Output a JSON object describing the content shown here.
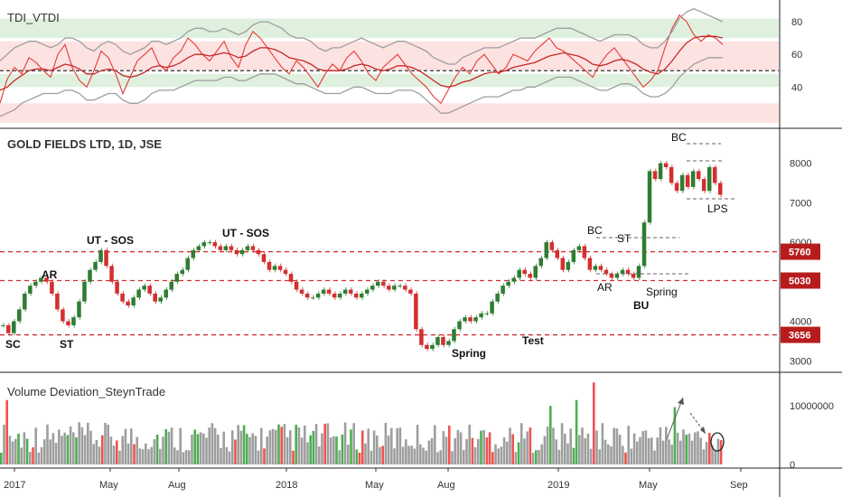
{
  "chart_data": [
    {
      "type": "line",
      "title": "TDI_VTDI",
      "yticks": [
        40,
        60,
        80
      ],
      "ylim": [
        18,
        90
      ],
      "bands": [
        {
          "from": 70,
          "to": 82,
          "color": "#dff0df"
        },
        {
          "from": 50,
          "to": 68,
          "color": "#fde2e2"
        },
        {
          "from": 40,
          "to": 48,
          "color": "#dff0df"
        },
        {
          "from": 18,
          "to": 30,
          "color": "#fde2e2"
        }
      ],
      "midline": 50,
      "series": [
        {
          "role": "tdi-line",
          "color": "#e53935",
          "values": [
            30,
            45,
            52,
            48,
            58,
            55,
            50,
            46,
            60,
            66,
            52,
            44,
            40,
            50,
            62,
            58,
            48,
            36,
            46,
            56,
            60,
            64,
            54,
            50,
            58,
            62,
            70,
            66,
            60,
            56,
            62,
            68,
            58,
            52,
            66,
            74,
            70,
            64,
            58,
            52,
            48,
            56,
            52,
            46,
            40,
            48,
            54,
            50,
            58,
            62,
            56,
            48,
            44,
            52,
            56,
            60,
            54,
            48,
            44,
            40,
            34,
            30,
            38,
            46,
            52,
            48,
            56,
            60,
            54,
            48,
            52,
            60,
            58,
            56,
            62,
            66,
            70,
            64,
            62,
            58,
            54,
            50,
            46,
            54,
            60,
            64,
            58,
            52,
            46,
            40,
            44,
            50,
            64,
            76,
            84,
            80,
            72,
            68,
            72,
            70,
            66
          ]
        },
        {
          "role": "signal-line",
          "color": "#c62828",
          "values": [
            38,
            40,
            44,
            47,
            50,
            51,
            51,
            50,
            52,
            54,
            53,
            51,
            48,
            48,
            50,
            51,
            50,
            47,
            46,
            47,
            49,
            52,
            53,
            52,
            53,
            55,
            58,
            60,
            60,
            59,
            60,
            61,
            60,
            58,
            59,
            62,
            64,
            64,
            63,
            61,
            58,
            57,
            56,
            54,
            51,
            50,
            50,
            50,
            51,
            53,
            54,
            53,
            51,
            50,
            51,
            53,
            53,
            52,
            50,
            47,
            44,
            41,
            40,
            41,
            43,
            44,
            46,
            48,
            49,
            49,
            50,
            52,
            53,
            54,
            55,
            57,
            59,
            60,
            61,
            60,
            59,
            57,
            54,
            53,
            54,
            56,
            57,
            56,
            54,
            51,
            49,
            48,
            51,
            56,
            62,
            67,
            70,
            71,
            71,
            71,
            70
          ]
        },
        {
          "role": "upper-band",
          "color": "#9e9e9e",
          "values": [
            56,
            60,
            64,
            66,
            68,
            68,
            66,
            64,
            66,
            70,
            70,
            68,
            64,
            62,
            66,
            68,
            66,
            62,
            60,
            62,
            64,
            68,
            68,
            66,
            68,
            70,
            74,
            76,
            76,
            74,
            74,
            76,
            74,
            72,
            74,
            78,
            80,
            80,
            78,
            76,
            72,
            70,
            70,
            68,
            64,
            62,
            64,
            64,
            66,
            68,
            70,
            68,
            66,
            64,
            66,
            68,
            68,
            66,
            64,
            62,
            58,
            56,
            54,
            54,
            58,
            60,
            62,
            64,
            64,
            64,
            66,
            68,
            70,
            70,
            70,
            72,
            74,
            76,
            76,
            76,
            74,
            72,
            70,
            68,
            70,
            72,
            72,
            72,
            70,
            66,
            64,
            64,
            68,
            74,
            82,
            86,
            88,
            86,
            84,
            82,
            80
          ]
        },
        {
          "role": "lower-band",
          "color": "#9e9e9e",
          "values": [
            22,
            24,
            26,
            30,
            32,
            34,
            36,
            36,
            36,
            38,
            38,
            36,
            32,
            32,
            34,
            36,
            36,
            32,
            30,
            30,
            32,
            36,
            38,
            38,
            38,
            40,
            42,
            44,
            44,
            44,
            44,
            46,
            46,
            44,
            44,
            46,
            48,
            48,
            48,
            46,
            44,
            42,
            42,
            40,
            38,
            36,
            36,
            36,
            38,
            40,
            40,
            38,
            36,
            36,
            36,
            38,
            38,
            38,
            36,
            32,
            28,
            24,
            24,
            26,
            28,
            30,
            32,
            34,
            34,
            34,
            36,
            38,
            38,
            40,
            40,
            42,
            44,
            46,
            46,
            46,
            44,
            42,
            40,
            38,
            38,
            40,
            42,
            42,
            40,
            36,
            34,
            34,
            36,
            40,
            46,
            50,
            54,
            56,
            58,
            58,
            58
          ]
        }
      ]
    },
    {
      "type": "candlestick",
      "title": "GOLD FIELDS LTD, 1D, JSE",
      "ylim": [
        2800,
        8700
      ],
      "yticks": [
        3000,
        4000,
        5000,
        6000,
        7000,
        8000
      ],
      "closes": [
        3900,
        3700,
        4000,
        4300,
        4700,
        4900,
        5000,
        5100,
        5000,
        4700,
        4300,
        4000,
        3900,
        4100,
        4500,
        5000,
        5300,
        5500,
        5800,
        5400,
        5000,
        4700,
        4500,
        4400,
        4600,
        4800,
        4900,
        4700,
        4500,
        4600,
        4800,
        5000,
        5200,
        5300,
        5600,
        5800,
        5900,
        6000,
        6000,
        5900,
        5800,
        5900,
        5800,
        5700,
        5800,
        5900,
        5800,
        5700,
        5500,
        5300,
        5400,
        5300,
        5200,
        5000,
        4800,
        4700,
        4600,
        4600,
        4700,
        4800,
        4700,
        4600,
        4700,
        4800,
        4700,
        4600,
        4700,
        4800,
        4900,
        5000,
        4900,
        4800,
        4900,
        4900,
        4800,
        4700,
        3800,
        3400,
        3300,
        3400,
        3600,
        3400,
        3500,
        3800,
        4000,
        4100,
        4000,
        4100,
        4200,
        4200,
        4500,
        4700,
        4900,
        5000,
        5100,
        5300,
        5200,
        5100,
        5400,
        5600,
        6000,
        5800,
        5600,
        5300,
        5500,
        5800,
        5900,
        5600,
        5300,
        5400,
        5300,
        5200,
        5100,
        5200,
        5300,
        5200,
        5100,
        5400,
        6500,
        7800,
        7600,
        8000,
        7900,
        7500,
        7300,
        7700,
        7400,
        7800,
        7600,
        7300,
        7900,
        7500,
        7200
      ],
      "price_levels": [
        {
          "value": "5760",
          "price": 5760,
          "color": "#d32f2f"
        },
        {
          "value": "5030",
          "price": 5030,
          "color": "#d32f2f"
        },
        {
          "value": "3656",
          "price": 3656,
          "color": "#d32f2f"
        }
      ],
      "annotations": [
        {
          "text": "SC",
          "bold": true
        },
        {
          "text": "AR",
          "bold": true
        },
        {
          "text": "ST",
          "bold": true
        },
        {
          "text": "UT - SOS",
          "bold": true
        },
        {
          "text": "UT - SOS",
          "bold": true
        },
        {
          "text": "Spring",
          "bold": true
        },
        {
          "text": "Test",
          "bold": true
        },
        {
          "text": "BC",
          "bold": false
        },
        {
          "text": "ST",
          "bold": false
        },
        {
          "text": "AR",
          "bold": false
        },
        {
          "text": "Spring",
          "bold": false
        },
        {
          "text": "BU",
          "bold": true
        },
        {
          "text": "BC",
          "bold": false
        },
        {
          "text": "LPS",
          "bold": false
        }
      ]
    },
    {
      "type": "bar",
      "title": "Volume Deviation_SteynTrade",
      "ylim": [
        0,
        14500000
      ],
      "yticks": [
        {
          "value": 0,
          "label": "0"
        },
        {
          "value": 10000000,
          "label": "10000000"
        }
      ],
      "colors": {
        "up": "#4caf50",
        "down": "#ef5350",
        "neutral": "#9e9e9e"
      },
      "bar_count": 250,
      "volume_base": 4000000,
      "volume_spikes": [
        {
          "index": 2,
          "value": 11000000,
          "kind": "down"
        },
        {
          "index": 190,
          "value": 10000000,
          "kind": "up"
        },
        {
          "index": 199,
          "value": 11000000,
          "kind": "up"
        },
        {
          "index": 205,
          "value": 14000000,
          "kind": "down"
        },
        {
          "index": 233,
          "value": 9800000,
          "kind": "up"
        }
      ],
      "x_axis_labels": [
        "2017",
        "May",
        "Aug",
        "2018",
        "May",
        "Aug",
        "2019",
        "May",
        "Sep"
      ]
    }
  ]
}
